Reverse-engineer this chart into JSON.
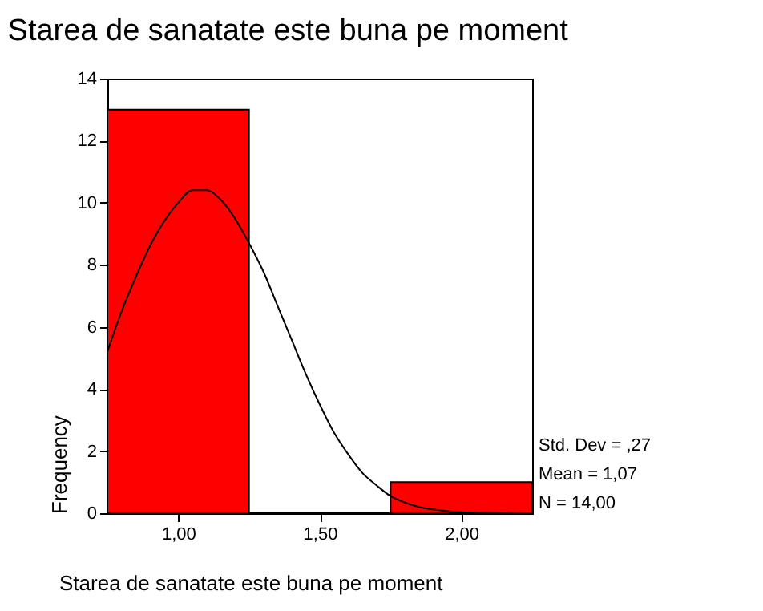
{
  "chart_data": {
    "type": "histogram",
    "title": "Starea de sanatate este buna pe moment",
    "xlabel": "Starea de sanatate este buna pe moment",
    "ylabel": "Frequency",
    "bins": [
      0.75,
      1.25,
      1.75,
      2.25
    ],
    "series": [
      {
        "color": "#ff0000",
        "values": [
          13,
          0,
          1
        ]
      },
      {
        "type": "line",
        "color": "#000000",
        "x": [
          0.75,
          0.8,
          0.85,
          0.9,
          0.95,
          1.0,
          1.05,
          1.1,
          1.15,
          1.2,
          1.25,
          1.3,
          1.35,
          1.4,
          1.45,
          1.5,
          1.55,
          1.6,
          1.65,
          1.7,
          1.75,
          1.8,
          1.85,
          1.9,
          1.95,
          2.0,
          2.1,
          2.25
        ],
        "values": [
          5.2,
          6.5,
          7.6,
          8.6,
          9.4,
          10.0,
          10.4,
          10.4,
          10.1,
          9.5,
          8.7,
          7.8,
          6.7,
          5.6,
          4.5,
          3.5,
          2.6,
          1.9,
          1.3,
          0.9,
          0.55,
          0.35,
          0.2,
          0.12,
          0.07,
          0.03,
          0.01,
          0.0
        ]
      }
    ],
    "xlim": [
      0.75,
      2.25
    ],
    "xticks": [
      {
        "value": 1.0,
        "label": "1,00"
      },
      {
        "value": 1.5,
        "label": "1,50"
      },
      {
        "value": 2.0,
        "label": "2,00"
      }
    ],
    "ylim": [
      0,
      14
    ],
    "yticks": [
      0,
      2,
      4,
      6,
      8,
      10,
      12,
      14
    ],
    "annotations": [
      "Std. Dev = ,27",
      "Mean = 1,07",
      "N = 14,00"
    ],
    "grid": false
  }
}
